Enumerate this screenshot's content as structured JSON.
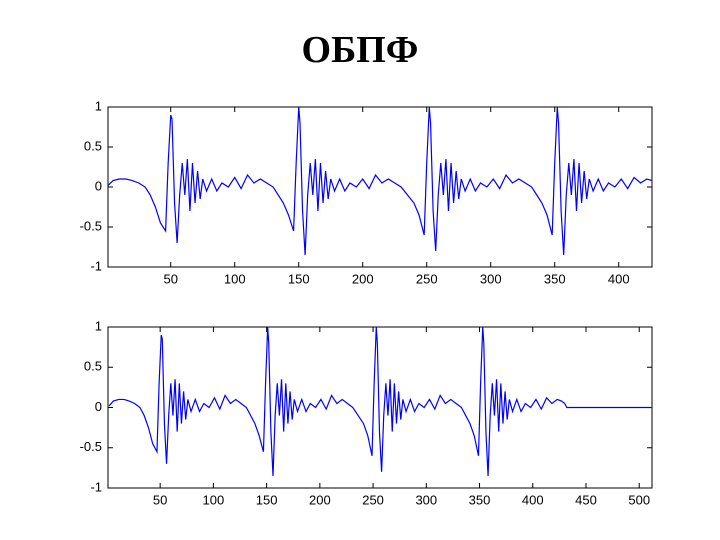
{
  "title": "ОБПФ",
  "chart_data": [
    {
      "type": "line",
      "x": [
        1,
        5,
        10,
        15,
        20,
        25,
        30,
        34,
        38,
        42,
        46,
        48,
        50,
        51,
        53,
        55,
        57,
        59,
        61,
        63,
        65,
        67,
        69,
        71,
        73,
        75,
        78,
        82,
        86,
        90,
        95,
        100,
        105,
        110,
        115,
        120,
        125,
        130,
        138,
        142,
        146,
        148,
        150,
        151,
        153,
        155,
        157,
        159,
        161,
        163,
        165,
        167,
        169,
        171,
        173,
        175,
        178,
        182,
        186,
        190,
        195,
        200,
        205,
        210,
        215,
        220,
        225,
        230,
        235,
        240,
        244,
        248,
        250,
        252,
        253,
        255,
        257,
        259,
        261,
        263,
        265,
        267,
        269,
        271,
        273,
        275,
        277,
        280,
        284,
        288,
        292,
        297,
        302,
        307,
        312,
        317,
        322,
        327,
        332,
        336,
        340,
        344,
        348,
        350,
        352,
        353,
        355,
        357,
        359,
        361,
        363,
        365,
        367,
        369,
        371,
        373,
        375,
        377,
        380,
        384,
        388,
        392,
        397,
        402,
        407,
        412,
        417,
        422,
        426
      ],
      "series": [
        {
          "color": "#0000ff",
          "values": [
            0.02,
            0.08,
            0.1,
            0.1,
            0.08,
            0.05,
            0,
            -0.1,
            -0.25,
            -0.45,
            -0.55,
            0.3,
            0.9,
            0.85,
            -0.2,
            -0.7,
            -0.1,
            0.3,
            -0.1,
            0.35,
            -0.3,
            0.3,
            -0.2,
            0.2,
            -0.15,
            0.1,
            -0.05,
            0.1,
            -0.05,
            0.05,
            0,
            0.12,
            -0.02,
            0.15,
            0.05,
            0.1,
            0.05,
            0,
            -0.2,
            -0.35,
            -0.55,
            0.3,
            1,
            0.8,
            -0.3,
            -0.85,
            -0.1,
            0.3,
            -0.1,
            0.35,
            -0.3,
            0.3,
            -0.2,
            0.2,
            -0.15,
            0.1,
            -0.05,
            0.1,
            -0.05,
            0.05,
            0,
            0.1,
            -0.02,
            0.15,
            0.05,
            0.1,
            0.05,
            0,
            -0.1,
            -0.2,
            -0.35,
            -0.6,
            0.3,
            1,
            0.8,
            -0.3,
            -0.8,
            -0.1,
            0.3,
            -0.1,
            0.35,
            -0.3,
            0.3,
            -0.2,
            0.2,
            -0.15,
            0.1,
            -0.05,
            0.1,
            -0.05,
            0.05,
            0,
            0.1,
            -0.02,
            0.15,
            0.05,
            0.1,
            0.05,
            0,
            -0.1,
            -0.2,
            -0.35,
            -0.6,
            0.3,
            1,
            0.8,
            -0.3,
            -0.85,
            -0.1,
            0.3,
            -0.1,
            0.35,
            -0.3,
            0.3,
            -0.2,
            0.2,
            -0.15,
            0.1,
            -0.05,
            0.1,
            -0.05,
            0.05,
            0,
            0.1,
            -0.02,
            0.12,
            0.05,
            0.1,
            0.08
          ]
        }
      ],
      "xlim": [
        1,
        426
      ],
      "xticks": [
        50,
        100,
        150,
        200,
        250,
        300,
        350,
        400
      ],
      "ylim": [
        -1,
        1
      ],
      "yticks": [
        -1,
        -0.5,
        0,
        0.5,
        1
      ]
    },
    {
      "type": "line",
      "x": [
        2,
        6,
        11,
        16,
        21,
        26,
        31,
        35,
        39,
        43,
        47,
        49,
        51,
        52,
        54,
        56,
        58,
        60,
        62,
        64,
        66,
        68,
        70,
        72,
        74,
        76,
        79,
        83,
        87,
        91,
        96,
        101,
        106,
        111,
        116,
        121,
        126,
        131,
        139,
        143,
        147,
        149,
        151,
        152,
        154,
        156,
        158,
        160,
        162,
        164,
        166,
        168,
        170,
        172,
        174,
        176,
        179,
        183,
        187,
        191,
        196,
        201,
        206,
        211,
        216,
        221,
        226,
        231,
        236,
        241,
        245,
        249,
        251,
        253,
        254,
        256,
        258,
        260,
        262,
        264,
        266,
        268,
        270,
        272,
        274,
        276,
        278,
        281,
        285,
        289,
        293,
        298,
        303,
        308,
        313,
        318,
        323,
        328,
        333,
        337,
        341,
        345,
        349,
        351,
        353,
        354,
        356,
        358,
        360,
        362,
        364,
        366,
        368,
        370,
        372,
        374,
        376,
        378,
        381,
        385,
        389,
        393,
        398,
        403,
        408,
        413,
        418,
        423,
        427,
        430,
        432,
        512
      ],
      "series": [
        {
          "color": "#0000ff",
          "values": [
            0.02,
            0.08,
            0.1,
            0.1,
            0.08,
            0.05,
            0,
            -0.1,
            -0.25,
            -0.45,
            -0.55,
            0.3,
            0.9,
            0.85,
            -0.2,
            -0.7,
            -0.1,
            0.3,
            -0.1,
            0.35,
            -0.3,
            0.3,
            -0.2,
            0.2,
            -0.15,
            0.1,
            -0.05,
            0.1,
            -0.05,
            0.05,
            0,
            0.12,
            -0.02,
            0.15,
            0.05,
            0.1,
            0.05,
            0,
            -0.2,
            -0.35,
            -0.55,
            0.3,
            1,
            0.8,
            -0.3,
            -0.85,
            -0.1,
            0.3,
            -0.1,
            0.35,
            -0.3,
            0.3,
            -0.2,
            0.2,
            -0.15,
            0.1,
            -0.05,
            0.1,
            -0.05,
            0.05,
            0,
            0.1,
            -0.02,
            0.15,
            0.05,
            0.1,
            0.05,
            0,
            -0.1,
            -0.2,
            -0.35,
            -0.6,
            0.3,
            1,
            0.8,
            -0.3,
            -0.8,
            -0.1,
            0.3,
            -0.1,
            0.35,
            -0.3,
            0.3,
            -0.2,
            0.2,
            -0.15,
            0.1,
            -0.05,
            0.1,
            -0.05,
            0.05,
            0,
            0.1,
            -0.02,
            0.15,
            0.05,
            0.1,
            0.05,
            0,
            -0.1,
            -0.2,
            -0.35,
            -0.6,
            0.3,
            1,
            0.8,
            -0.3,
            -0.85,
            -0.1,
            0.3,
            -0.1,
            0.35,
            -0.3,
            0.3,
            -0.2,
            0.2,
            -0.15,
            0.1,
            -0.05,
            0.1,
            -0.05,
            0.05,
            0,
            0.1,
            -0.02,
            0.12,
            0.05,
            0.1,
            0.08,
            0.05,
            0,
            0
          ]
        }
      ],
      "xlim": [
        1,
        512
      ],
      "xticks": [
        50,
        100,
        150,
        200,
        250,
        300,
        350,
        400,
        450,
        500
      ],
      "ylim": [
        -1,
        1
      ],
      "yticks": [
        -1,
        -0.5,
        0,
        0.5,
        1
      ]
    }
  ]
}
